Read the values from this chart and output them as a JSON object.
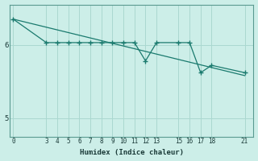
{
  "xlabel": "Humidex (Indice chaleur)",
  "bg_color": "#cceee8",
  "line_color": "#1a7a6e",
  "grid_color": "#aad8d0",
  "xticks": [
    0,
    3,
    4,
    5,
    6,
    7,
    8,
    9,
    10,
    11,
    12,
    13,
    15,
    16,
    17,
    18,
    21
  ],
  "yticks": [
    5,
    6
  ],
  "ylim": [
    4.75,
    6.55
  ],
  "xlim": [
    -0.3,
    21.8
  ],
  "trend_x": [
    0,
    21
  ],
  "trend_y": [
    6.35,
    5.58
  ],
  "data_x": [
    0,
    3,
    4,
    5,
    6,
    7,
    8,
    9,
    10,
    11,
    12,
    13,
    15,
    16,
    17,
    18,
    21
  ],
  "data_y": [
    6.35,
    6.03,
    6.03,
    6.03,
    6.03,
    6.03,
    6.03,
    6.03,
    6.03,
    6.03,
    5.78,
    6.03,
    6.03,
    6.03,
    5.62,
    5.72,
    5.62
  ]
}
